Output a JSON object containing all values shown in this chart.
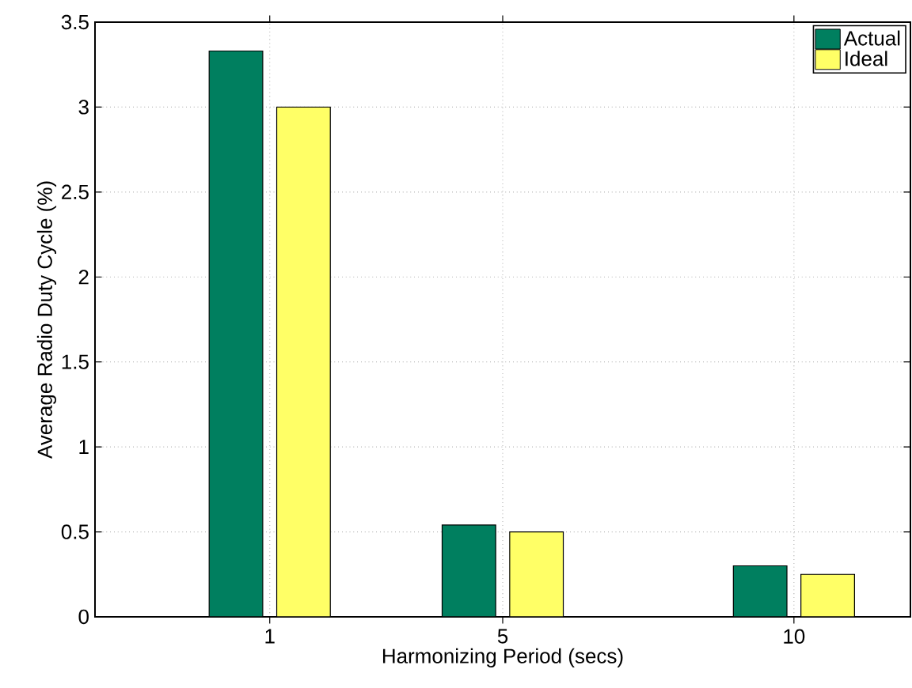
{
  "chart_data": {
    "type": "bar",
    "xlabel": "Harmonizing Period (secs)",
    "ylabel": "Average Radio Duty Cycle (%)",
    "x": [
      1,
      5,
      10
    ],
    "series": [
      {
        "name": "Actual",
        "color": "#007f5f",
        "values": [
          3.33,
          0.54,
          0.3
        ]
      },
      {
        "name": "Ideal",
        "color": "#ffff66",
        "values": [
          3.0,
          0.5,
          0.25
        ]
      }
    ],
    "xlim": [
      -2,
      12
    ],
    "xticks": [
      1,
      5,
      10
    ],
    "ylim": [
      0,
      3.5
    ],
    "yticks": [
      0,
      0.5,
      1,
      1.5,
      2,
      2.5,
      3,
      3.5
    ],
    "grid": true,
    "legend": "top right"
  }
}
